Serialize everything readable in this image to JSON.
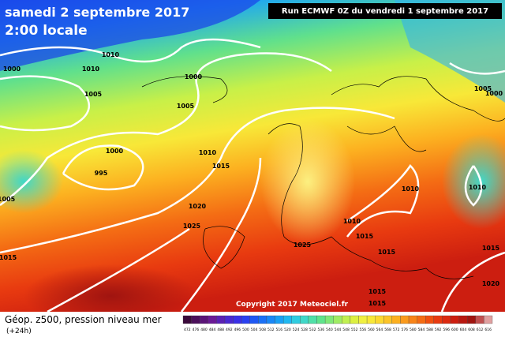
{
  "header": {
    "title": "samedi 2 septembre 2017",
    "subtitle": "2:00 locale",
    "run": "Run ECMWF 0Z du vendredi 1 septembre 2017"
  },
  "copyright": "Copyright 2017 Meteociel.fr",
  "footer": {
    "title": "Géop. z500, pression niveau mer",
    "step": "(+24h)"
  },
  "isobar_labels": [
    "1010",
    "1010",
    "1000",
    "1005",
    "1000",
    "1005",
    "1000",
    "995",
    "1005",
    "1010",
    "1015",
    "1020",
    "1025",
    "1015",
    "1025",
    "1010",
    "1015",
    "1015",
    "1010",
    "1010",
    "1015",
    "1020",
    "1015",
    "1015",
    "1005",
    "1000"
  ],
  "legend": {
    "labels": [
      "472",
      "476",
      "480",
      "484",
      "488",
      "492",
      "496",
      "500",
      "504",
      "508",
      "512",
      "516",
      "520",
      "524",
      "528",
      "532",
      "536",
      "540",
      "544",
      "548",
      "552",
      "556",
      "560",
      "564",
      "568",
      "572",
      "576",
      "580",
      "584",
      "588",
      "592",
      "596",
      "600",
      "604",
      "608",
      "612",
      "616"
    ],
    "colors": [
      "#3a0a3a",
      "#4b0f5a",
      "#5a1478",
      "#6a1a96",
      "#5a20b4",
      "#4a28d0",
      "#3a30e6",
      "#2a40f0",
      "#1e58f4",
      "#1a70f6",
      "#1a88f6",
      "#1aa0f4",
      "#20b8f0",
      "#30cce0",
      "#40d8c8",
      "#50e0a8",
      "#60e48c",
      "#80e878",
      "#a0ec64",
      "#c0f050",
      "#dcf040",
      "#f0f040",
      "#f8e838",
      "#fcd830",
      "#fcc428",
      "#fcb020",
      "#fa9a1c",
      "#f88418",
      "#f46c14",
      "#f05010",
      "#e83a10",
      "#dc2a10",
      "#cc1e10",
      "#b81810",
      "#a01410",
      "#c05050",
      "#e0a0a0"
    ]
  }
}
